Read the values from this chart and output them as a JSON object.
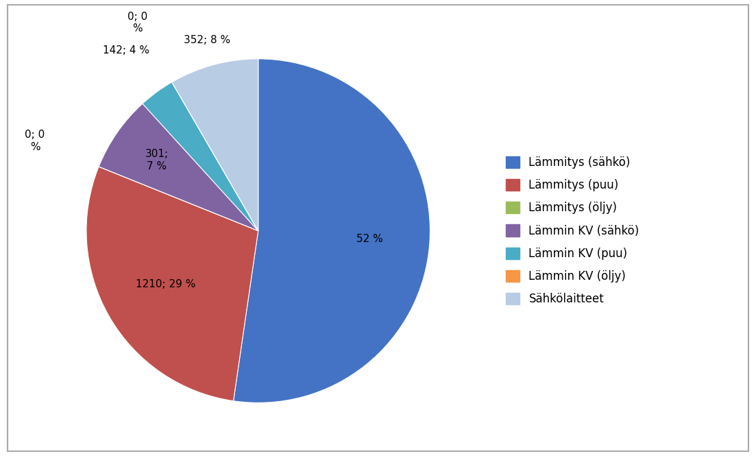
{
  "labels": [
    "Lämmitys (sähkö)",
    "Lämmitys (puu)",
    "Lämmitys (öljy)",
    "Lämmin KV (sähkö)",
    "Lämmin KV (puu)",
    "Lämmin KV (öljy)",
    "Sähkölaitteet"
  ],
  "values": [
    2199,
    1210,
    0.1,
    301,
    142,
    0.1,
    352
  ],
  "colors": [
    "#4472C4",
    "#C0504D",
    "#9BBB59",
    "#8064A2",
    "#4BACC6",
    "#F79646",
    "#B8CCE4"
  ],
  "custom_labels": [
    "52 %",
    "1210; 29 %",
    "0; 0\n%",
    "301;\n7 %",
    "142; 4 %",
    "0; 0\n%",
    "352; 8 %"
  ],
  "label_radii": [
    0.65,
    0.62,
    1.4,
    0.72,
    1.3,
    1.4,
    1.15
  ],
  "background_color": "#FFFFFF",
  "border_color": "#AAAAAA",
  "legend_fontsize": 12,
  "label_fontsize": 11,
  "figsize": [
    11.03,
    6.65
  ],
  "dpi": 100
}
